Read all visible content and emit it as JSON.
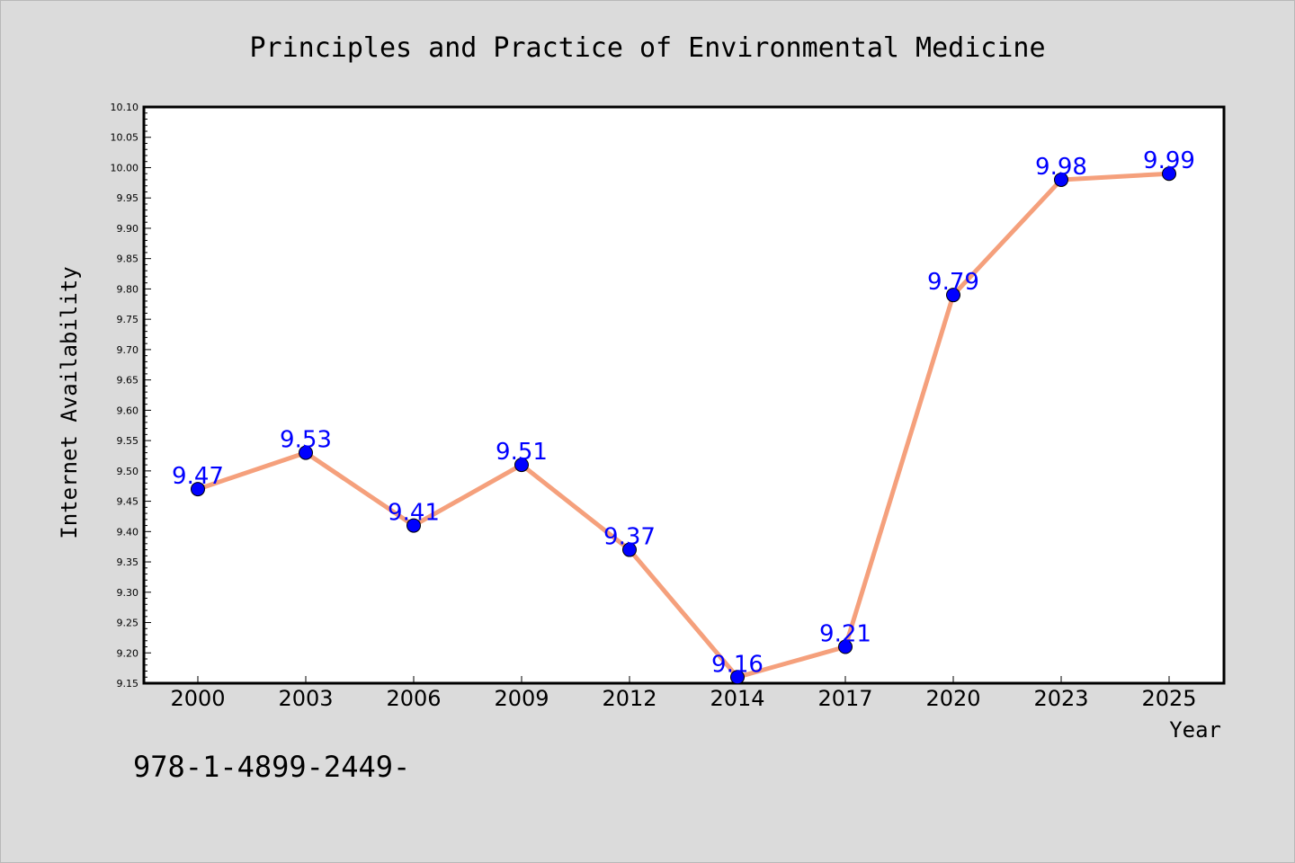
{
  "chart_data": {
    "type": "line",
    "title": "Principles and Practice of Environmental Medicine",
    "xlabel": "Year",
    "ylabel": "Internet Availability",
    "categories": [
      "2000",
      "2003",
      "2006",
      "2009",
      "2012",
      "2014",
      "2017",
      "2020",
      "2023",
      "2025"
    ],
    "series": [
      {
        "values": [
          9.47,
          9.53,
          9.41,
          9.51,
          9.37,
          9.16,
          9.21,
          9.79,
          9.98,
          9.99
        ]
      }
    ],
    "data_labels": [
      "9.47",
      "9.53",
      "9.41",
      "9.51",
      "9.37",
      "9.16",
      "9.21",
      "9.79",
      "9.98",
      "9.99"
    ],
    "ylim": [
      9.15,
      10.1
    ],
    "yticks": [
      "9.15",
      "9.20",
      "9.25",
      "9.30",
      "9.35",
      "9.40",
      "9.45",
      "9.50",
      "9.55",
      "9.60",
      "9.65",
      "9.70",
      "9.75",
      "9.80",
      "9.85",
      "9.90",
      "9.95",
      "10.00",
      "10.05",
      "10.10"
    ],
    "grid": false,
    "line_color": "#f5a07c",
    "marker_color": "#0000ff",
    "label_color": "#0000ff",
    "background_color": "#dbdbdb",
    "plot_background_color": "#ffffff"
  },
  "footnote": "978-1-4899-2449-"
}
